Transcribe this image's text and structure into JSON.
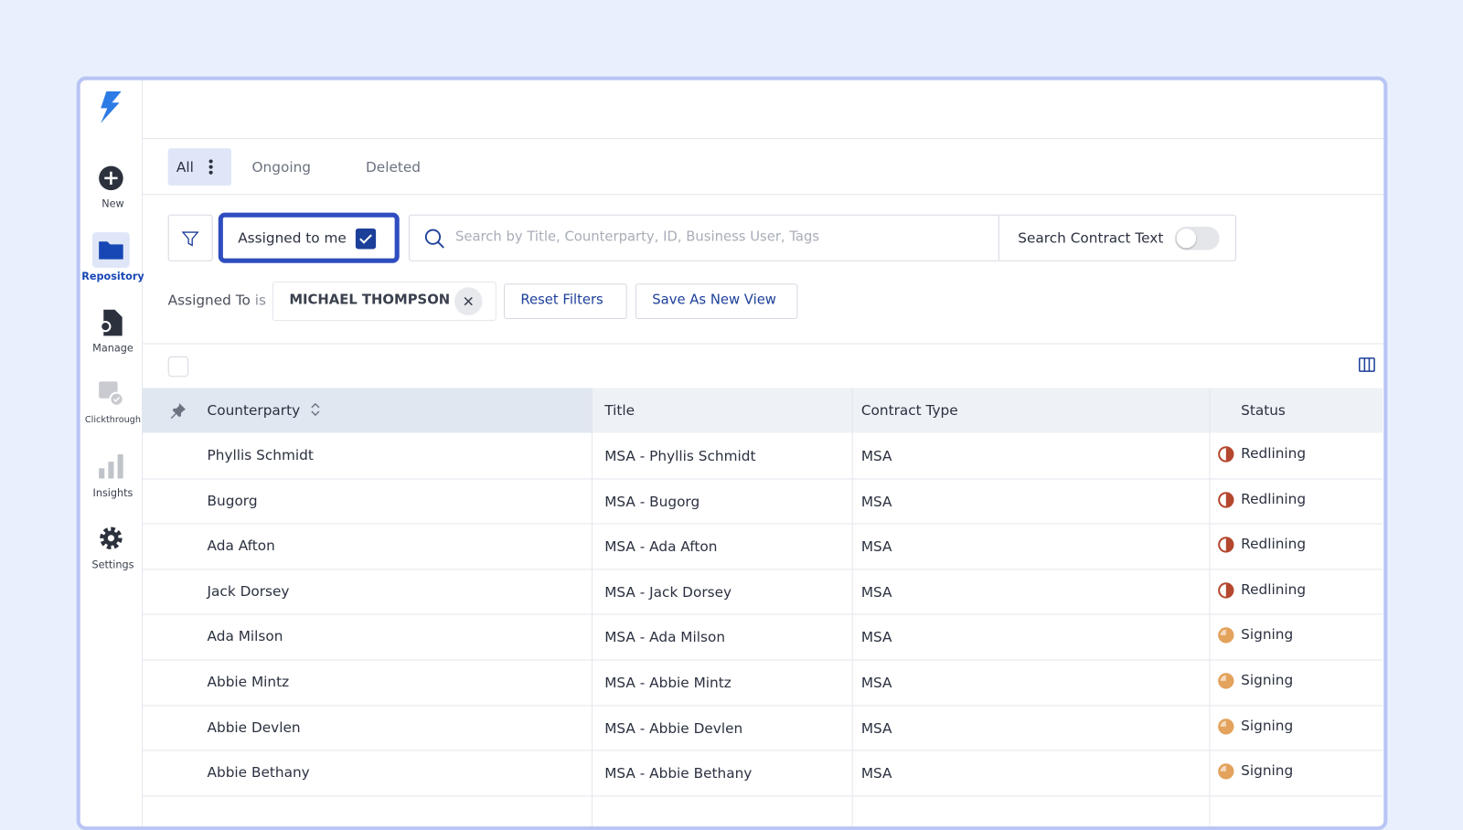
{
  "sidebar": {
    "items": [
      {
        "label": "New"
      },
      {
        "label": "Repository"
      },
      {
        "label": "Manage"
      },
      {
        "label": "Clickthrough"
      },
      {
        "label": "Insights"
      },
      {
        "label": "Settings"
      }
    ]
  },
  "tabs": [
    "All",
    "Ongoing",
    "Deleted"
  ],
  "filters": {
    "assigned_to_me": "Assigned to me",
    "search_placeholder": "Search by Title, Counterparty, ID, Business User, Tags",
    "search_contract_text": "Search Contract Text"
  },
  "active_filter": {
    "field": "Assigned To",
    "operator": "is",
    "value": "MICHAEL THOMPSON"
  },
  "buttons": {
    "reset": "Reset Filters",
    "save_view": "Save As New View"
  },
  "table": {
    "columns": [
      "Counterparty",
      "Title",
      "Contract Type",
      "Status"
    ],
    "rows": [
      {
        "counterparty": "Phyllis Schmidt",
        "title": "MSA - Phyllis Schmidt",
        "contract_type": "MSA",
        "status": "Redlining",
        "status_color": "#b4472e"
      },
      {
        "counterparty": "Bugorg",
        "title": "MSA - Bugorg",
        "contract_type": "MSA",
        "status": "Redlining",
        "status_color": "#b4472e"
      },
      {
        "counterparty": "Ada Afton",
        "title": "MSA - Ada Afton",
        "contract_type": "MSA",
        "status": "Redlining",
        "status_color": "#b4472e"
      },
      {
        "counterparty": "Jack Dorsey",
        "title": "MSA - Jack Dorsey",
        "contract_type": "MSA",
        "status": "Redlining",
        "status_color": "#b4472e"
      },
      {
        "counterparty": "Ada Milson",
        "title": "MSA - Ada Milson",
        "contract_type": "MSA",
        "status": "Signing",
        "status_color": "#e3a35c"
      },
      {
        "counterparty": "Abbie Mintz",
        "title": "MSA - Abbie Mintz",
        "contract_type": "MSA",
        "status": "Signing",
        "status_color": "#e3a35c"
      },
      {
        "counterparty": "Abbie Devlen",
        "title": "MSA - Abbie Devlen",
        "contract_type": "MSA",
        "status": "Signing",
        "status_color": "#e3a35c"
      },
      {
        "counterparty": "Abbie Bethany",
        "title": "MSA - Abbie Bethany",
        "contract_type": "MSA",
        "status": "Signing",
        "status_color": "#e3a35c"
      }
    ]
  }
}
